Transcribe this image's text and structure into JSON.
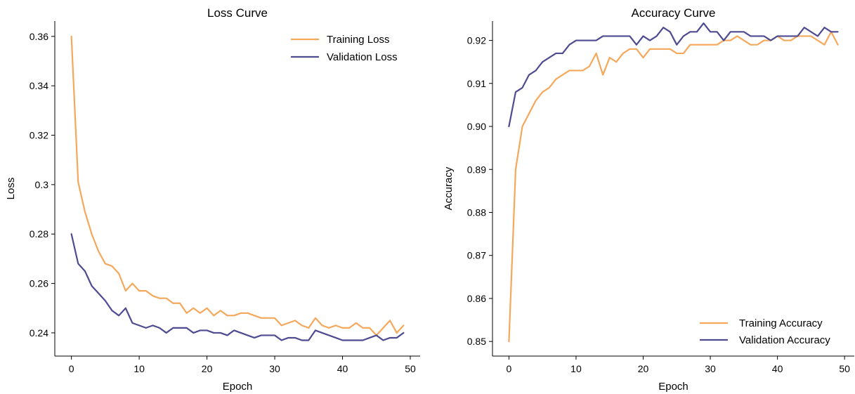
{
  "colors": {
    "training": "#F5A85B",
    "validation": "#4E4B91"
  },
  "chart_data": [
    {
      "type": "line",
      "title": "Loss Curve",
      "xlabel": "Epoch",
      "ylabel": "Loss",
      "xlim": [
        -2.45,
        51.45
      ],
      "ylim": [
        0.2306,
        0.3662
      ],
      "xticks": [
        0,
        10,
        20,
        30,
        40,
        50
      ],
      "yticks": [
        0.24,
        0.26,
        0.28,
        0.3,
        0.32,
        0.34,
        0.36
      ],
      "legend_position": "top-right",
      "x": [
        0,
        1,
        2,
        3,
        4,
        5,
        6,
        7,
        8,
        9,
        10,
        11,
        12,
        13,
        14,
        15,
        16,
        17,
        18,
        19,
        20,
        21,
        22,
        23,
        24,
        25,
        26,
        27,
        28,
        29,
        30,
        31,
        32,
        33,
        34,
        35,
        36,
        37,
        38,
        39,
        40,
        41,
        42,
        43,
        44,
        45,
        46,
        47,
        48,
        49
      ],
      "series": [
        {
          "name": "Training Loss",
          "color_key": "training",
          "values": [
            0.36,
            0.301,
            0.289,
            0.28,
            0.273,
            0.268,
            0.267,
            0.264,
            0.257,
            0.26,
            0.257,
            0.257,
            0.255,
            0.254,
            0.254,
            0.252,
            0.252,
            0.248,
            0.25,
            0.248,
            0.25,
            0.247,
            0.249,
            0.247,
            0.247,
            0.248,
            0.248,
            0.247,
            0.246,
            0.246,
            0.246,
            0.243,
            0.244,
            0.245,
            0.243,
            0.242,
            0.246,
            0.243,
            0.242,
            0.243,
            0.242,
            0.242,
            0.244,
            0.242,
            0.242,
            0.239,
            0.242,
            0.245,
            0.24,
            0.243
          ]
        },
        {
          "name": "Validation Loss",
          "color_key": "validation",
          "values": [
            0.28,
            0.268,
            0.265,
            0.259,
            0.256,
            0.253,
            0.249,
            0.247,
            0.25,
            0.244,
            0.243,
            0.242,
            0.243,
            0.242,
            0.24,
            0.242,
            0.242,
            0.242,
            0.24,
            0.241,
            0.241,
            0.24,
            0.24,
            0.239,
            0.241,
            0.24,
            0.239,
            0.238,
            0.239,
            0.239,
            0.239,
            0.237,
            0.238,
            0.238,
            0.237,
            0.237,
            0.241,
            0.24,
            0.239,
            0.238,
            0.237,
            0.237,
            0.237,
            0.237,
            0.238,
            0.239,
            0.237,
            0.238,
            0.238,
            0.24
          ]
        }
      ]
    },
    {
      "type": "line",
      "title": "Accuracy Curve",
      "xlabel": "Epoch",
      "ylabel": "Accuracy",
      "xlim": [
        -2.45,
        51.45
      ],
      "ylim": [
        0.8466,
        0.9245
      ],
      "xticks": [
        0,
        10,
        20,
        30,
        40,
        50
      ],
      "yticks": [
        0.85,
        0.86,
        0.87,
        0.88,
        0.89,
        0.9,
        0.91,
        0.92
      ],
      "yticklabels": [
        "0.85",
        "0.86",
        "0.87",
        "0.88",
        "0.89",
        "0.90",
        "0.91",
        "0.92"
      ],
      "legend_position": "bottom-right",
      "x": [
        0,
        1,
        2,
        3,
        4,
        5,
        6,
        7,
        8,
        9,
        10,
        11,
        12,
        13,
        14,
        15,
        16,
        17,
        18,
        19,
        20,
        21,
        22,
        23,
        24,
        25,
        26,
        27,
        28,
        29,
        30,
        31,
        32,
        33,
        34,
        35,
        36,
        37,
        38,
        39,
        40,
        41,
        42,
        43,
        44,
        45,
        46,
        47,
        48,
        49
      ],
      "series": [
        {
          "name": "Training Accuracy",
          "color_key": "training",
          "values": [
            0.85,
            0.89,
            0.9,
            0.903,
            0.906,
            0.908,
            0.909,
            0.911,
            0.912,
            0.913,
            0.913,
            0.913,
            0.914,
            0.917,
            0.912,
            0.916,
            0.915,
            0.917,
            0.918,
            0.918,
            0.916,
            0.918,
            0.918,
            0.918,
            0.918,
            0.917,
            0.917,
            0.919,
            0.919,
            0.919,
            0.919,
            0.919,
            0.92,
            0.92,
            0.921,
            0.92,
            0.919,
            0.919,
            0.92,
            0.92,
            0.921,
            0.92,
            0.92,
            0.921,
            0.921,
            0.921,
            0.92,
            0.919,
            0.922,
            0.919
          ]
        },
        {
          "name": "Validation Accuracy",
          "color_key": "validation",
          "values": [
            0.9,
            0.908,
            0.909,
            0.912,
            0.913,
            0.915,
            0.916,
            0.917,
            0.917,
            0.919,
            0.92,
            0.92,
            0.92,
            0.92,
            0.921,
            0.921,
            0.921,
            0.921,
            0.921,
            0.919,
            0.921,
            0.92,
            0.921,
            0.923,
            0.922,
            0.919,
            0.921,
            0.922,
            0.922,
            0.924,
            0.922,
            0.922,
            0.92,
            0.922,
            0.922,
            0.922,
            0.921,
            0.921,
            0.921,
            0.92,
            0.921,
            0.921,
            0.921,
            0.921,
            0.923,
            0.922,
            0.921,
            0.923,
            0.922,
            0.922
          ]
        }
      ]
    }
  ]
}
